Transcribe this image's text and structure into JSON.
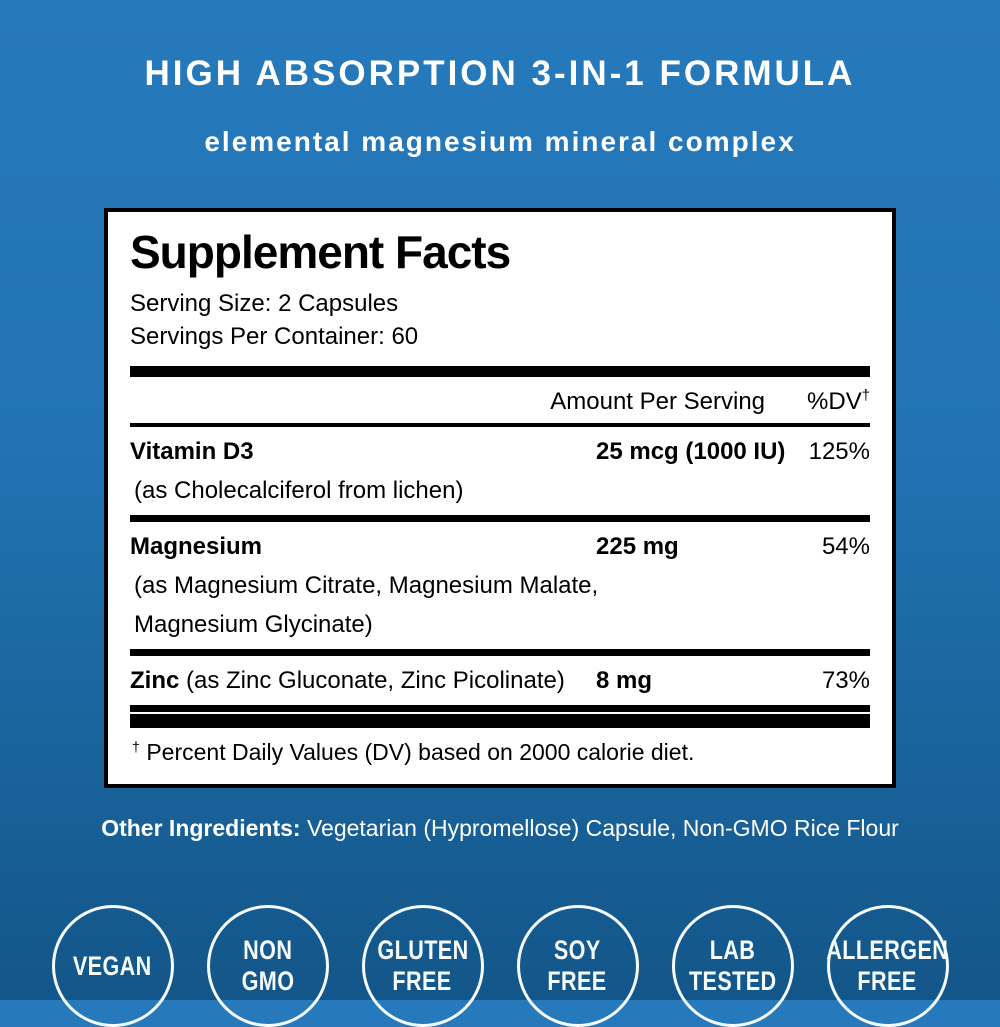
{
  "background": {
    "top_color": "#2679BB",
    "bottom_color": "#135689"
  },
  "header": {
    "title": "HIGH ABSORPTION 3-IN-1 FORMULA",
    "subtitle": "elemental magnesium mineral complex"
  },
  "panel": {
    "title": "Supplement Facts",
    "serving_size": "Serving Size: 2 Capsules",
    "servings_per_container": "Servings Per Container: 60",
    "columns": {
      "amount": "Amount Per Serving",
      "dv": "%DV",
      "dv_mark": "†"
    },
    "rows": [
      {
        "name": "Vitamin D3",
        "name_suffix": "",
        "detail": "(as Cholecalciferol from lichen)",
        "detail2": "",
        "amount": "25 mcg (1000 IU)",
        "dv": "125%"
      },
      {
        "name": "Magnesium",
        "name_suffix": "",
        "detail": "(as Magnesium Citrate, Magnesium Malate,",
        "detail2": "Magnesium Glycinate)",
        "amount": "225 mg",
        "dv": "54%"
      },
      {
        "name": "Zinc",
        "name_suffix": " (as Zinc Gluconate, Zinc Picolinate)",
        "detail": "",
        "detail2": "",
        "amount": "8 mg",
        "dv": "73%"
      }
    ],
    "footnote_mark": "†",
    "footnote": " Percent Daily Values (DV) based on 2000 calorie diet."
  },
  "other_ingredients": {
    "label": "Other Ingredients:",
    "text": " Vegetarian (Hypromellose) Capsule, Non-GMO Rice Flour"
  },
  "badges": [
    {
      "lines": [
        "VEGAN",
        ""
      ]
    },
    {
      "lines": [
        "NON",
        "GMO"
      ]
    },
    {
      "lines": [
        "GLUTEN",
        "FREE"
      ]
    },
    {
      "lines": [
        "SOY",
        "FREE"
      ]
    },
    {
      "lines": [
        "LAB",
        "TESTED"
      ]
    },
    {
      "lines": [
        "ALLERGEN",
        "FREE"
      ]
    }
  ]
}
